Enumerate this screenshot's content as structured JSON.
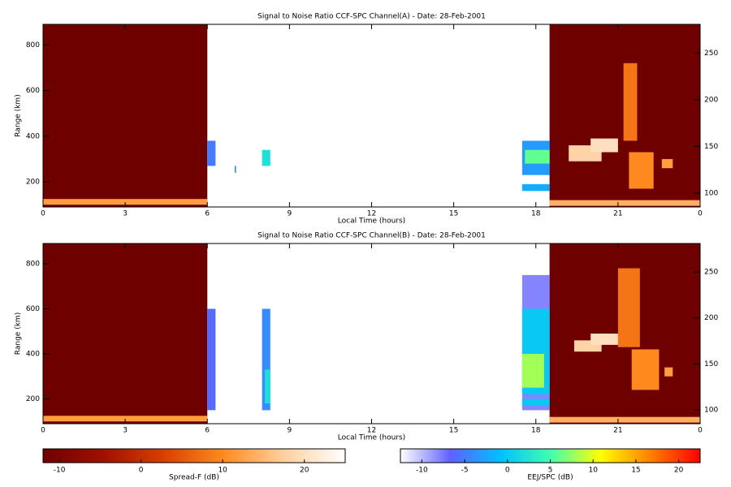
{
  "chart_data": [
    {
      "type": "heatmap",
      "title": "Signal to Noise Ratio CCF-SPC Channel(A) - Date: 28-Feb-2001",
      "x_label": "Local Time (hours)",
      "y_label": "Range (km)",
      "xlim": [
        0,
        24
      ],
      "xticks": [
        0,
        3,
        6,
        9,
        12,
        15,
        18,
        21,
        {
          "value": 24,
          "label": "0"
        }
      ],
      "ylim": [
        90,
        890
      ],
      "yticks": [
        200,
        400,
        600,
        800
      ],
      "y2lim": [
        85,
        281
      ],
      "y2ticks": [
        100,
        150,
        200,
        250
      ],
      "blocks": [
        {
          "x": [
            0,
            6
          ],
          "y": [
            90,
            890
          ],
          "value": -12,
          "colormap": "spread"
        },
        {
          "x": [
            0,
            6
          ],
          "y": [
            100,
            125
          ],
          "value": 12,
          "colormap": "spread"
        },
        {
          "x": [
            18.5,
            24
          ],
          "y": [
            90,
            890
          ],
          "value": -12,
          "colormap": "spread"
        },
        {
          "x": [
            18.5,
            24
          ],
          "y": [
            95,
            120
          ],
          "value": 14,
          "colormap": "spread"
        },
        {
          "x": [
            21.2,
            21.7
          ],
          "y": [
            380,
            720
          ],
          "value": 8,
          "colormap": "spread"
        },
        {
          "x": [
            21.4,
            22.3
          ],
          "y": [
            170,
            330
          ],
          "value": 10,
          "colormap": "spread"
        },
        {
          "x": [
            19.2,
            20.4
          ],
          "y": [
            290,
            360
          ],
          "value": 18,
          "colormap": "spread"
        },
        {
          "x": [
            20,
            21
          ],
          "y": [
            330,
            390
          ],
          "value": 20,
          "colormap": "spread"
        },
        {
          "x": [
            22.6,
            23
          ],
          "y": [
            260,
            300
          ],
          "value": 12,
          "colormap": "spread"
        },
        {
          "x": [
            6,
            6.3
          ],
          "y": [
            270,
            380
          ],
          "value": -5,
          "colormap": "eej"
        },
        {
          "x": [
            7,
            7.05
          ],
          "y": [
            240,
            270
          ],
          "value": -4,
          "colormap": "eej"
        },
        {
          "x": [
            8,
            8.3
          ],
          "y": [
            270,
            340
          ],
          "value": 2,
          "colormap": "eej"
        },
        {
          "x": [
            17.5,
            18.5
          ],
          "y": [
            230,
            380
          ],
          "value": -3,
          "colormap": "eej"
        },
        {
          "x": [
            17.6,
            18.5
          ],
          "y": [
            280,
            340
          ],
          "value": 6,
          "colormap": "eej"
        },
        {
          "x": [
            17.5,
            18.5
          ],
          "y": [
            160,
            190
          ],
          "value": -2,
          "colormap": "eej"
        }
      ]
    },
    {
      "type": "heatmap",
      "title": "Signal to Noise Ratio CCF-SPC Channel(B) - Date: 28-Feb-2001",
      "x_label": "Local Time (hours)",
      "y_label": "Range (km)",
      "xlim": [
        0,
        24
      ],
      "xticks": [
        0,
        3,
        6,
        9,
        12,
        15,
        18,
        21,
        {
          "value": 24,
          "label": "0"
        }
      ],
      "ylim": [
        90,
        890
      ],
      "yticks": [
        200,
        400,
        600,
        800
      ],
      "y2lim": [
        85,
        281
      ],
      "y2ticks": [
        100,
        150,
        200,
        250
      ],
      "blocks": [
        {
          "x": [
            0,
            6
          ],
          "y": [
            90,
            890
          ],
          "value": -12,
          "colormap": "spread"
        },
        {
          "x": [
            0,
            6
          ],
          "y": [
            100,
            125
          ],
          "value": 12,
          "colormap": "spread"
        },
        {
          "x": [
            18.5,
            24
          ],
          "y": [
            90,
            890
          ],
          "value": -12,
          "colormap": "spread"
        },
        {
          "x": [
            18.5,
            24
          ],
          "y": [
            95,
            120
          ],
          "value": 14,
          "colormap": "spread"
        },
        {
          "x": [
            21,
            21.8
          ],
          "y": [
            430,
            780
          ],
          "value": 8,
          "colormap": "spread"
        },
        {
          "x": [
            21.5,
            22.5
          ],
          "y": [
            240,
            420
          ],
          "value": 10,
          "colormap": "spread"
        },
        {
          "x": [
            19.4,
            20.4
          ],
          "y": [
            410,
            460
          ],
          "value": 18,
          "colormap": "spread"
        },
        {
          "x": [
            20,
            21
          ],
          "y": [
            440,
            490
          ],
          "value": 20,
          "colormap": "spread"
        },
        {
          "x": [
            22.7,
            23
          ],
          "y": [
            300,
            340
          ],
          "value": 12,
          "colormap": "spread"
        },
        {
          "x": [
            6,
            6.3
          ],
          "y": [
            150,
            600
          ],
          "value": -6,
          "colormap": "eej"
        },
        {
          "x": [
            8,
            8.3
          ],
          "y": [
            150,
            600
          ],
          "value": -4,
          "colormap": "eej"
        },
        {
          "x": [
            8.1,
            8.3
          ],
          "y": [
            180,
            330
          ],
          "value": 2,
          "colormap": "eej"
        },
        {
          "x": [
            17.5,
            18.5
          ],
          "y": [
            150,
            750
          ],
          "value": -8,
          "colormap": "eej"
        },
        {
          "x": [
            17.5,
            18.5
          ],
          "y": [
            220,
            600
          ],
          "value": 0,
          "colormap": "eej"
        },
        {
          "x": [
            17.5,
            18.3
          ],
          "y": [
            250,
            400
          ],
          "value": 8,
          "colormap": "eej"
        },
        {
          "x": [
            17.5,
            18.5
          ],
          "y": [
            170,
            200
          ],
          "value": 0,
          "colormap": "eej"
        }
      ]
    },
    {
      "type": "colorbar",
      "label": "Spread-F (dB)",
      "colormap": "spread",
      "lim": [
        -12,
        25
      ],
      "ticks": [
        -10,
        0,
        10,
        20
      ],
      "colors": [
        "#6e0000",
        "#a01000",
        "#d84000",
        "#ff8c20",
        "#ffd0a0",
        "#ffffff"
      ]
    },
    {
      "type": "colorbar",
      "label": "EEJ/SPC (dB)",
      "colormap": "eej",
      "lim": [
        -12.5,
        22.5
      ],
      "ticks": [
        -10,
        -5,
        0,
        5,
        10,
        15,
        20
      ],
      "colors": [
        "#ffffff",
        "#6060ff",
        "#00c0ff",
        "#40ffb0",
        "#ffff00",
        "#ff8000",
        "#ff0000"
      ]
    }
  ]
}
